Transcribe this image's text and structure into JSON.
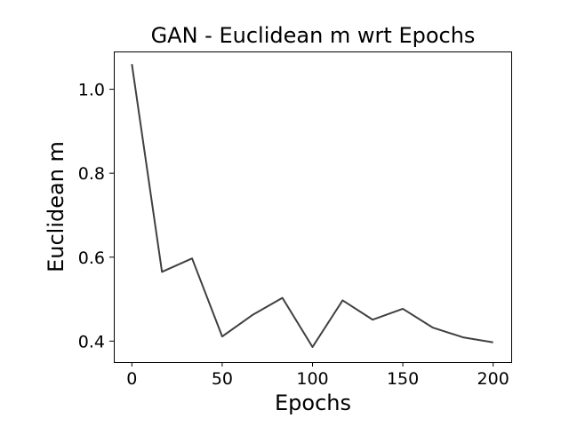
{
  "chart_data": {
    "type": "line",
    "title": "GAN - Euclidean m wrt Epochs",
    "xlabel": "Epochs",
    "ylabel": "Euclidean m",
    "xlim": [
      -10,
      210
    ],
    "ylim": [
      0.35,
      1.09
    ],
    "xticks": [
      0,
      50,
      100,
      150,
      200
    ],
    "xtick_labels": [
      "0",
      "50",
      "100",
      "150",
      "200"
    ],
    "yticks": [
      0.4,
      0.6,
      0.8,
      1.0
    ],
    "ytick_labels": [
      "0.4",
      "0.6",
      "0.8",
      "1.0"
    ],
    "grid": false,
    "legend": "none",
    "color": "#404040",
    "series": [
      {
        "x": [
          0,
          16.67,
          33.33,
          50,
          66.67,
          83.33,
          100,
          116.67,
          133.33,
          150,
          166.67,
          183.33,
          200
        ],
        "y": [
          1.06,
          0.565,
          0.597,
          0.411,
          0.462,
          0.503,
          0.386,
          0.497,
          0.451,
          0.477,
          0.432,
          0.409,
          0.397
        ]
      }
    ]
  }
}
